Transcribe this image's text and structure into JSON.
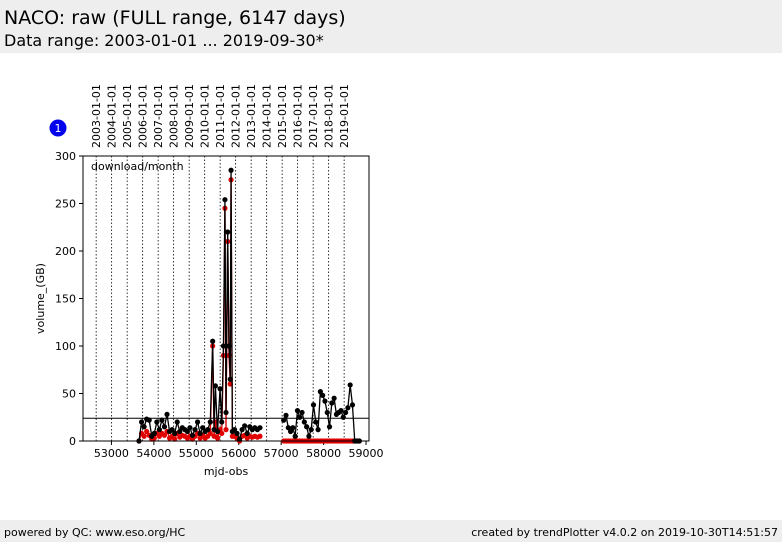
{
  "header": {
    "title": "NACO: raw (FULL range, 6147 days)",
    "subtitle": "Data range: 2003-01-01 ... 2019-09-30*"
  },
  "badge": "1",
  "chart_data": {
    "type": "line",
    "annotation": "download/month",
    "xlabel": "mjd-obs",
    "ylabel": "volume_(GB)",
    "xlim": [
      52330,
      59070
    ],
    "ylim": [
      0,
      300
    ],
    "xticks": [
      53000,
      54000,
      55000,
      56000,
      57000,
      58000,
      59000
    ],
    "yticks": [
      0,
      50,
      100,
      150,
      200,
      250,
      300
    ],
    "x2ticks": [
      {
        "value": 52640,
        "label": "2003-01-01"
      },
      {
        "value": 53005,
        "label": "2004-01-01"
      },
      {
        "value": 53371,
        "label": "2005-01-01"
      },
      {
        "value": 53736,
        "label": "2006-01-01"
      },
      {
        "value": 54101,
        "label": "2007-01-01"
      },
      {
        "value": 54466,
        "label": "2008-01-01"
      },
      {
        "value": 54832,
        "label": "2009-01-01"
      },
      {
        "value": 55197,
        "label": "2010-01-01"
      },
      {
        "value": 55562,
        "label": "2011-01-01"
      },
      {
        "value": 55927,
        "label": "2012-01-01"
      },
      {
        "value": 56293,
        "label": "2013-01-01"
      },
      {
        "value": 56658,
        "label": "2014-01-01"
      },
      {
        "value": 57023,
        "label": "2015-01-01"
      },
      {
        "value": 57388,
        "label": "2016-01-01"
      },
      {
        "value": 57754,
        "label": "2017-01-01"
      },
      {
        "value": 58119,
        "label": "2018-01-01"
      },
      {
        "value": 58484,
        "label": "2019-01-01"
      }
    ],
    "reference_line": 24,
    "x": [
      53650,
      53710,
      53770,
      53830,
      53890,
      53950,
      54010,
      54070,
      54130,
      54190,
      54250,
      54310,
      54370,
      54430,
      54490,
      54550,
      54610,
      54670,
      54730,
      54790,
      54850,
      54910,
      54970,
      55030,
      55090,
      55150,
      55210,
      55270,
      55330,
      55386,
      55420,
      55450,
      55500,
      55560,
      55600,
      55640,
      55675,
      55700,
      55740,
      55770,
      55800,
      55819,
      55850,
      55900,
      55960,
      56020,
      56080,
      56140,
      56200,
      56260,
      56320,
      56380,
      56440,
      56500,
      56560,
      57060,
      57114,
      57168,
      57222,
      57276,
      57330,
      57384,
      57438,
      57492,
      57546,
      57600,
      57654,
      57708,
      57762,
      57816,
      57870,
      57924,
      57978,
      58032,
      58086,
      58140,
      58194,
      58248,
      58302,
      58356,
      58410,
      58464,
      58518,
      58572,
      58626,
      58680,
      58734,
      58788,
      58842
    ],
    "series": [
      {
        "color": "#e00000",
        "values": [
          0,
          8,
          5,
          10,
          6,
          2,
          3,
          8,
          5,
          8,
          6,
          10,
          3,
          5,
          2,
          8,
          4,
          6,
          5,
          3,
          5,
          2,
          5,
          8,
          3,
          6,
          3,
          5,
          8,
          100,
          5,
          20,
          3,
          12,
          8,
          90,
          245,
          12,
          210,
          90,
          60,
          275,
          5,
          5,
          3,
          0,
          5,
          6,
          3,
          5,
          4,
          5,
          4,
          5,
          null,
          0,
          0,
          0,
          0,
          0,
          0,
          0,
          0,
          0,
          0,
          0,
          0,
          0,
          0,
          0,
          0,
          0,
          0,
          0,
          0,
          0,
          0,
          0,
          0,
          0,
          0,
          0,
          0,
          0,
          0,
          0,
          0,
          0,
          0
        ]
      },
      {
        "color": "#000000",
        "values": [
          0,
          20,
          15,
          23,
          22,
          5,
          8,
          20,
          12,
          22,
          15,
          28,
          10,
          12,
          8,
          20,
          10,
          14,
          12,
          10,
          14,
          6,
          12,
          20,
          8,
          14,
          10,
          12,
          20,
          105,
          12,
          58,
          10,
          55,
          20,
          100,
          254,
          30,
          220,
          100,
          65,
          285,
          10,
          12,
          8,
          2,
          12,
          16,
          8,
          15,
          12,
          14,
          12,
          14,
          null,
          22,
          27,
          14,
          10,
          14,
          5,
          32,
          25,
          30,
          20,
          15,
          5,
          12,
          38,
          20,
          12,
          52,
          48,
          42,
          30,
          15,
          40,
          45,
          28,
          30,
          32,
          25,
          30,
          35,
          59,
          38,
          0,
          0,
          0
        ]
      }
    ]
  },
  "footer": {
    "left": "powered by QC: www.eso.org/HC",
    "right": "created by trendPlotter v4.0.2 on 2019-10-30T14:51:57"
  }
}
